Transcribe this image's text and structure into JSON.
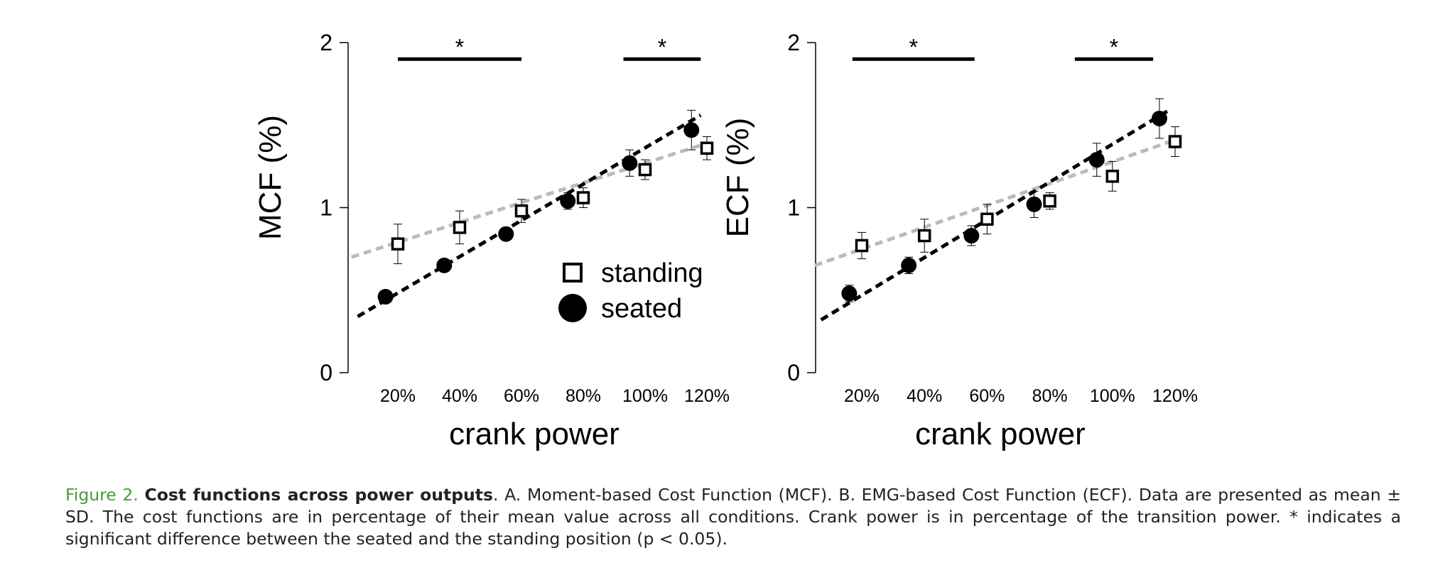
{
  "chart_data": [
    {
      "type": "scatter",
      "panel": "A",
      "xlabel": "crank power",
      "ylabel": "MCF (%)",
      "x_ticks": [
        20,
        40,
        60,
        80,
        100,
        120
      ],
      "x_tick_labels": [
        "20%",
        "40%",
        "60%",
        "80%",
        "100%",
        "120%"
      ],
      "xlim": [
        5,
        120
      ],
      "ylim": [
        0,
        2
      ],
      "y_ticks": [
        0,
        1,
        2
      ],
      "y_tick_labels": [
        "0",
        "1",
        "2"
      ],
      "legend": {
        "placement": "center-right",
        "entries": [
          "standing",
          "seated"
        ]
      },
      "series": [
        {
          "name": "standing",
          "marker": "open-square",
          "color": "#000000",
          "x": [
            20,
            40,
            60,
            80,
            100,
            120
          ],
          "y": [
            0.78,
            0.88,
            0.98,
            1.06,
            1.23,
            1.36
          ],
          "sd": [
            0.12,
            0.1,
            0.07,
            0.06,
            0.06,
            0.07
          ]
        },
        {
          "name": "seated",
          "marker": "filled-circle",
          "color": "#000000",
          "x": [
            16,
            35,
            55,
            75,
            95,
            115
          ],
          "y": [
            0.46,
            0.65,
            0.84,
            1.04,
            1.27,
            1.47
          ],
          "sd": [
            0.02,
            0.03,
            0.02,
            0.05,
            0.08,
            0.12
          ]
        }
      ],
      "trendlines": [
        {
          "series": "standing",
          "color": "#bbbbbb",
          "x": [
            5,
            120
          ],
          "y": [
            0.7,
            1.39
          ]
        },
        {
          "series": "seated",
          "color": "#000000",
          "x": [
            7,
            118
          ],
          "y": [
            0.34,
            1.56
          ]
        }
      ],
      "significance": [
        {
          "label": "*",
          "x": [
            20,
            60
          ],
          "y": 1.9
        },
        {
          "label": "*",
          "x": [
            93,
            118
          ],
          "y": 1.9
        }
      ]
    },
    {
      "type": "scatter",
      "panel": "B",
      "xlabel": "crank power",
      "ylabel": "ECF (%)",
      "x_ticks": [
        20,
        40,
        60,
        80,
        100,
        120
      ],
      "x_tick_labels": [
        "20%",
        "40%",
        "60%",
        "80%",
        "100%",
        "120%"
      ],
      "xlim": [
        5,
        120
      ],
      "ylim": [
        0,
        2
      ],
      "y_ticks": [
        0,
        1,
        2
      ],
      "y_tick_labels": [
        "0",
        "1",
        "2"
      ],
      "series": [
        {
          "name": "standing",
          "marker": "open-square",
          "color": "#000000",
          "x": [
            20,
            40,
            60,
            80,
            100,
            120
          ],
          "y": [
            0.77,
            0.83,
            0.93,
            1.04,
            1.19,
            1.4
          ],
          "sd": [
            0.08,
            0.1,
            0.09,
            0.05,
            0.09,
            0.09
          ]
        },
        {
          "name": "seated",
          "marker": "filled-circle",
          "color": "#000000",
          "x": [
            16,
            35,
            55,
            75,
            95,
            115
          ],
          "y": [
            0.48,
            0.65,
            0.83,
            1.02,
            1.29,
            1.54
          ],
          "sd": [
            0.05,
            0.05,
            0.06,
            0.08,
            0.1,
            0.12
          ]
        }
      ],
      "trendlines": [
        {
          "series": "standing",
          "color": "#bbbbbb",
          "x": [
            5,
            120
          ],
          "y": [
            0.65,
            1.41
          ]
        },
        {
          "series": "seated",
          "color": "#000000",
          "x": [
            7,
            118
          ],
          "y": [
            0.32,
            1.59
          ]
        }
      ],
      "significance": [
        {
          "label": "*",
          "x": [
            17,
            56
          ],
          "y": 1.9
        },
        {
          "label": "*",
          "x": [
            88,
            113
          ],
          "y": 1.9
        }
      ]
    }
  ],
  "caption": {
    "label": "Figure 2.",
    "title": "Cost functions across power outputs",
    "body": ". A. Moment-based Cost Function (MCF). B. EMG-based Cost Function (ECF). Data are presented as mean ± SD. The cost functions are in percentage of their mean value across all conditions. Crank power is in percentage of the transition power. * indicates a significant difference between the seated and the standing position (p < 0.05)."
  }
}
